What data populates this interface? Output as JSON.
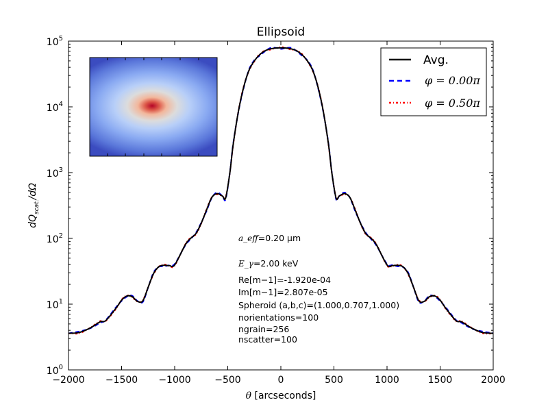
{
  "chart_data": {
    "type": "line",
    "title": "Ellipsoid",
    "xlabel": "θ [arcseconds]",
    "ylabel": "dQ_scat/dΩ",
    "xlim": [
      -2000,
      2000
    ],
    "ylim": [
      1,
      100000
    ],
    "yscale": "log",
    "x_ticks": [
      "−2000",
      "−1500",
      "−1000",
      "−500",
      "0",
      "500",
      "1000",
      "1500",
      "2000"
    ],
    "y_ticks": [
      {
        "base": "10",
        "exp": "0"
      },
      {
        "base": "10",
        "exp": "1"
      },
      {
        "base": "10",
        "exp": "2"
      },
      {
        "base": "10",
        "exp": "3"
      },
      {
        "base": "10",
        "exp": "4"
      },
      {
        "base": "10",
        "exp": "5"
      }
    ],
    "legend": {
      "placement": "top-right",
      "entries": [
        {
          "label": "Avg.",
          "color": "#000000",
          "style": "solid"
        },
        {
          "label": "φ = 0.00π",
          "color": "#0000ff",
          "style": "dashed"
        },
        {
          "label": "φ = 0.50π",
          "color": "#ff0000",
          "style": "dashdot"
        }
      ]
    },
    "series": [
      {
        "name": "Avg.",
        "x": [
          -2000,
          -1900,
          -1800,
          -1700,
          -1650,
          -1550,
          -1500,
          -1450,
          -1400,
          -1350,
          -1300,
          -1250,
          -1200,
          -1150,
          -1100,
          -1050,
          -1000,
          -900,
          -850,
          -800,
          -750,
          -700,
          -650,
          -600,
          -550,
          -520,
          -480,
          -450,
          -400,
          -350,
          -300,
          -250,
          -200,
          -150,
          -100,
          -50,
          0,
          50,
          100,
          150,
          200,
          250,
          300,
          350,
          400,
          450,
          480,
          520,
          550,
          600,
          650,
          700,
          750,
          800,
          850,
          900,
          1000,
          1050,
          1100,
          1150,
          1200,
          1250,
          1300,
          1350,
          1400,
          1450,
          1500,
          1550,
          1650,
          1700,
          1800,
          1900,
          2000
        ],
        "y": [
          3.6,
          3.7,
          4.3,
          5.4,
          5.6,
          8.8,
          11.5,
          13.3,
          13.0,
          11.0,
          11.2,
          18,
          29,
          37,
          39,
          38.5,
          39.5,
          80,
          100,
          118,
          170,
          270,
          420,
          480,
          440,
          410,
          1000,
          2600,
          8500,
          20000,
          36000,
          50000,
          62000,
          71000,
          76000,
          78500,
          79000,
          78500,
          76000,
          71000,
          62000,
          50000,
          36000,
          20000,
          8500,
          2600,
          1000,
          410,
          440,
          480,
          420,
          270,
          170,
          118,
          100,
          80,
          39.5,
          38.5,
          39,
          37,
          29,
          18,
          11.2,
          11.0,
          13.0,
          13.3,
          11.5,
          8.8,
          5.6,
          5.4,
          4.3,
          3.7,
          3.6
        ],
        "color": "#000000"
      }
    ],
    "annotations": [
      {
        "math": "a_eff",
        "text": "=0.20 μm"
      },
      {
        "math": "E_γ",
        "text": "=2.00 keV"
      },
      {
        "math": "",
        "text": "Re[m−1]=-1.920e-04"
      },
      {
        "math": "",
        "text": "Im[m−1]=2.807e-05"
      },
      {
        "math": "",
        "text": "Spheroid (a,b,c)=(1.000,0.707,1.000)"
      },
      {
        "math": "",
        "text": "norientations=100"
      },
      {
        "math": "",
        "text": "ngrain=256"
      },
      {
        "math": "",
        "text": "nscatter=100"
      }
    ],
    "grid": false
  },
  "inset": {
    "colors": [
      "#3b4cc0",
      "#6f92f3",
      "#aac7fd",
      "#dddcdc",
      "#f5c4ac",
      "#e8765c",
      "#b40426"
    ]
  }
}
